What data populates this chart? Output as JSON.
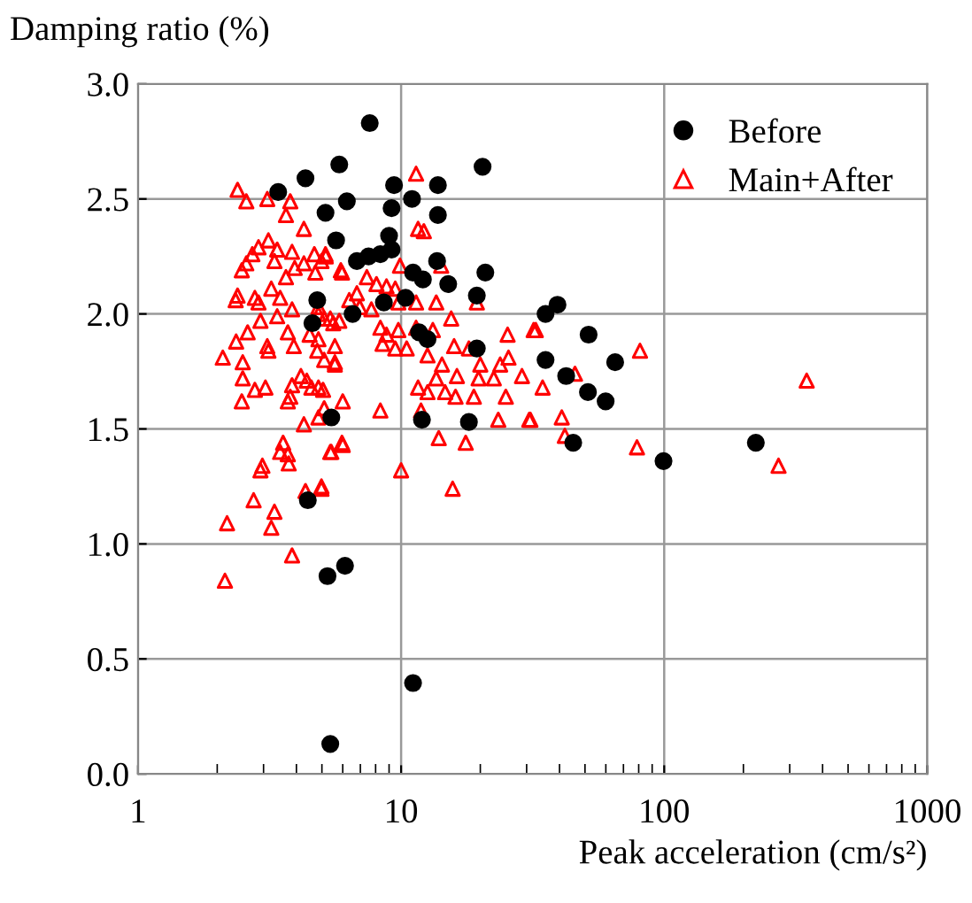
{
  "chart_data": {
    "type": "scatter",
    "xlabel": "Peak acceleration (cm/s²)",
    "ylabel": "Damping ratio (%)",
    "log": "x",
    "xlim": [
      1,
      1000
    ],
    "xticks": [
      1,
      10,
      100,
      1000
    ],
    "ylim": [
      0,
      3
    ],
    "yticks": [
      {
        "value": 0,
        "label": "0.0"
      },
      {
        "value": 0.5,
        "label": "0.5"
      },
      {
        "value": 1,
        "label": "1.0"
      },
      {
        "value": 1.5,
        "label": "1.5"
      },
      {
        "value": 2,
        "label": "2.0"
      },
      {
        "value": 2.5,
        "label": "2.5"
      },
      {
        "value": 3,
        "label": "3.0"
      }
    ],
    "grid": true,
    "legend": "top right",
    "series": [
      {
        "name": "Before",
        "color": "#000000",
        "marker": "circle",
        "x": [
          3.41,
          4.33,
          5.82,
          5.16,
          6.22,
          5.66,
          9.4,
          11,
          9.2,
          9.0,
          6.79,
          7.52,
          8.34,
          9.2,
          11.1,
          12.1,
          4.8,
          6.54,
          8.6,
          10.4,
          4.6,
          5.43,
          4.42,
          5.25,
          6.12,
          11.1,
          5.38,
          7.6,
          20.4,
          13.8,
          13.8,
          13.7,
          15.1,
          20.9,
          19.4,
          35.4,
          39.3,
          11.7,
          12.6,
          19.4,
          51.6,
          35.4,
          65.1,
          42.4,
          51.3,
          59.9,
          12.0,
          18.1,
          45.1,
          99.4,
          223
        ],
        "values": [
          2.53,
          2.59,
          2.65,
          2.44,
          2.49,
          2.32,
          2.56,
          2.5,
          2.46,
          2.34,
          2.23,
          2.25,
          2.26,
          2.28,
          2.18,
          2.15,
          2.06,
          2.0,
          2.05,
          2.07,
          1.96,
          1.55,
          1.19,
          0.86,
          0.905,
          0.395,
          0.13,
          2.83,
          2.64,
          2.56,
          2.43,
          2.23,
          2.13,
          2.18,
          2.08,
          2.0,
          2.04,
          1.92,
          1.89,
          1.85,
          1.91,
          1.8,
          1.79,
          1.73,
          1.66,
          1.62,
          1.54,
          1.53,
          1.44,
          1.36,
          1.44
        ]
      },
      {
        "name": "Main+After",
        "color": "#ff0000",
        "marker": "triangle",
        "x": [
          32.5,
          80.9,
          45.8,
          34.5,
          348,
          40.8,
          31.0,
          41.9,
          78.8,
          272,
          11.4,
          11.6,
          12.2,
          5.17,
          4.98,
          5.96,
          9.9,
          14.2,
          7.41,
          8.06,
          8.8,
          9.5,
          6.79,
          6.35,
          6.96,
          7.71,
          4.85,
          5.1,
          5.52,
          9.76,
          11.4,
          13.6,
          15.5,
          19.4,
          8.34,
          8.8,
          9.76,
          8.5,
          9.5,
          10.5,
          11.4,
          13.2,
          12.6,
          14.3,
          15.9,
          18.1,
          25.4,
          31.9,
          20.0,
          23.8,
          28.8,
          25.6,
          11.6,
          12.6,
          13.6,
          14.7,
          16.3,
          16.1,
          18.9,
          19.7,
          22.5,
          25,
          11.9,
          8.34,
          23.4,
          30.7,
          13.9,
          17.6,
          10.0,
          15.7,
          5.96,
          5.43,
          4.98,
          4.85,
          5.6,
          5.6,
          5.1,
          4.85,
          5.1,
          6.0,
          4.85,
          2.39,
          2.58,
          3.1,
          3.79,
          3.65,
          4.27,
          3.13,
          2.87,
          3.38,
          2.72,
          2.58,
          3.85,
          4.68,
          5.16,
          4.27,
          3.3,
          3.94,
          2.48,
          3.65,
          4.72,
          5.9,
          2.39,
          2.35,
          2.78,
          2.87,
          3.21,
          3.47,
          3.85,
          4.85,
          5.38,
          5.82,
          3.38,
          2.92,
          2.61,
          2.36,
          2.1,
          2.5,
          3.1,
          3.13,
          3.71,
          3.91,
          4.49,
          2.5,
          3.05,
          2.78,
          3.85,
          4.16,
          4.38,
          4.56,
          3.79,
          3.71,
          5.05,
          5.6,
          4.8,
          2.48,
          4.27,
          3.56,
          5.38,
          6.0,
          3.71,
          3.47,
          2.97,
          2.92,
          3.74,
          4.98,
          4.33,
          2.75,
          3.3,
          2.18,
          3.21,
          3.85,
          2.14
        ],
        "values": [
          1.93,
          1.84,
          1.74,
          1.68,
          1.71,
          1.55,
          1.54,
          1.47,
          1.42,
          1.34,
          2.61,
          2.37,
          2.36,
          2.25,
          2.23,
          2.18,
          2.21,
          2.21,
          2.16,
          2.13,
          2.12,
          2.11,
          2.09,
          2.06,
          2.03,
          2.02,
          2.0,
          1.98,
          1.96,
          2.05,
          2.05,
          2.05,
          1.98,
          2.05,
          1.94,
          1.91,
          1.93,
          1.87,
          1.85,
          1.85,
          1.94,
          1.93,
          1.82,
          1.78,
          1.86,
          1.85,
          1.91,
          1.93,
          1.78,
          1.78,
          1.73,
          1.81,
          1.68,
          1.66,
          1.72,
          1.66,
          1.73,
          1.64,
          1.64,
          1.72,
          1.72,
          1.64,
          1.58,
          1.58,
          1.54,
          1.54,
          1.46,
          1.44,
          1.32,
          1.24,
          1.44,
          1.4,
          1.24,
          1.89,
          1.86,
          1.79,
          1.8,
          1.68,
          1.59,
          1.62,
          1.55,
          2.54,
          2.49,
          2.5,
          2.49,
          2.43,
          2.37,
          2.32,
          2.29,
          2.28,
          2.26,
          2.22,
          2.27,
          2.26,
          2.26,
          2.22,
          2.23,
          2.2,
          2.19,
          2.16,
          2.18,
          2.19,
          2.08,
          2.06,
          2.07,
          2.05,
          2.11,
          2.07,
          2.02,
          2.03,
          1.98,
          1.97,
          1.99,
          1.97,
          1.92,
          1.88,
          1.81,
          1.79,
          1.86,
          1.84,
          1.92,
          1.86,
          1.91,
          1.72,
          1.68,
          1.67,
          1.69,
          1.73,
          1.71,
          1.68,
          1.64,
          1.62,
          1.67,
          1.78,
          1.84,
          1.62,
          1.52,
          1.44,
          1.4,
          1.43,
          1.39,
          1.4,
          1.34,
          1.32,
          1.35,
          1.25,
          1.23,
          1.19,
          1.14,
          1.09,
          1.07,
          0.95,
          0.84
        ]
      }
    ]
  }
}
